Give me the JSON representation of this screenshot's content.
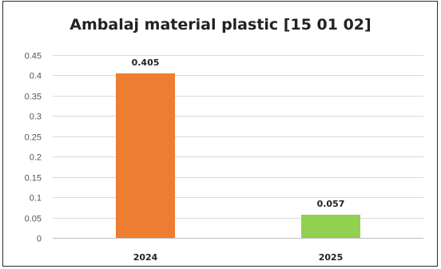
{
  "chart_data": {
    "type": "bar",
    "title": "Ambalaj material plastic [15 01 02]",
    "categories": [
      "2024",
      "2025"
    ],
    "values": [
      0.405,
      0.057
    ],
    "data_labels": [
      "0.405",
      "0.057"
    ],
    "colors": [
      "#ED7D31",
      "#92D050"
    ],
    "ylim": [
      0,
      0.45
    ],
    "yticks": [
      "0",
      "0.05",
      "0.1",
      "0.15",
      "0.2",
      "0.25",
      "0.3",
      "0.35",
      "0.4",
      "0.45"
    ],
    "ytick_values": [
      0,
      0.05,
      0.1,
      0.15,
      0.2,
      0.25,
      0.3,
      0.35,
      0.4,
      0.45
    ],
    "grid": true,
    "legend": "none"
  }
}
